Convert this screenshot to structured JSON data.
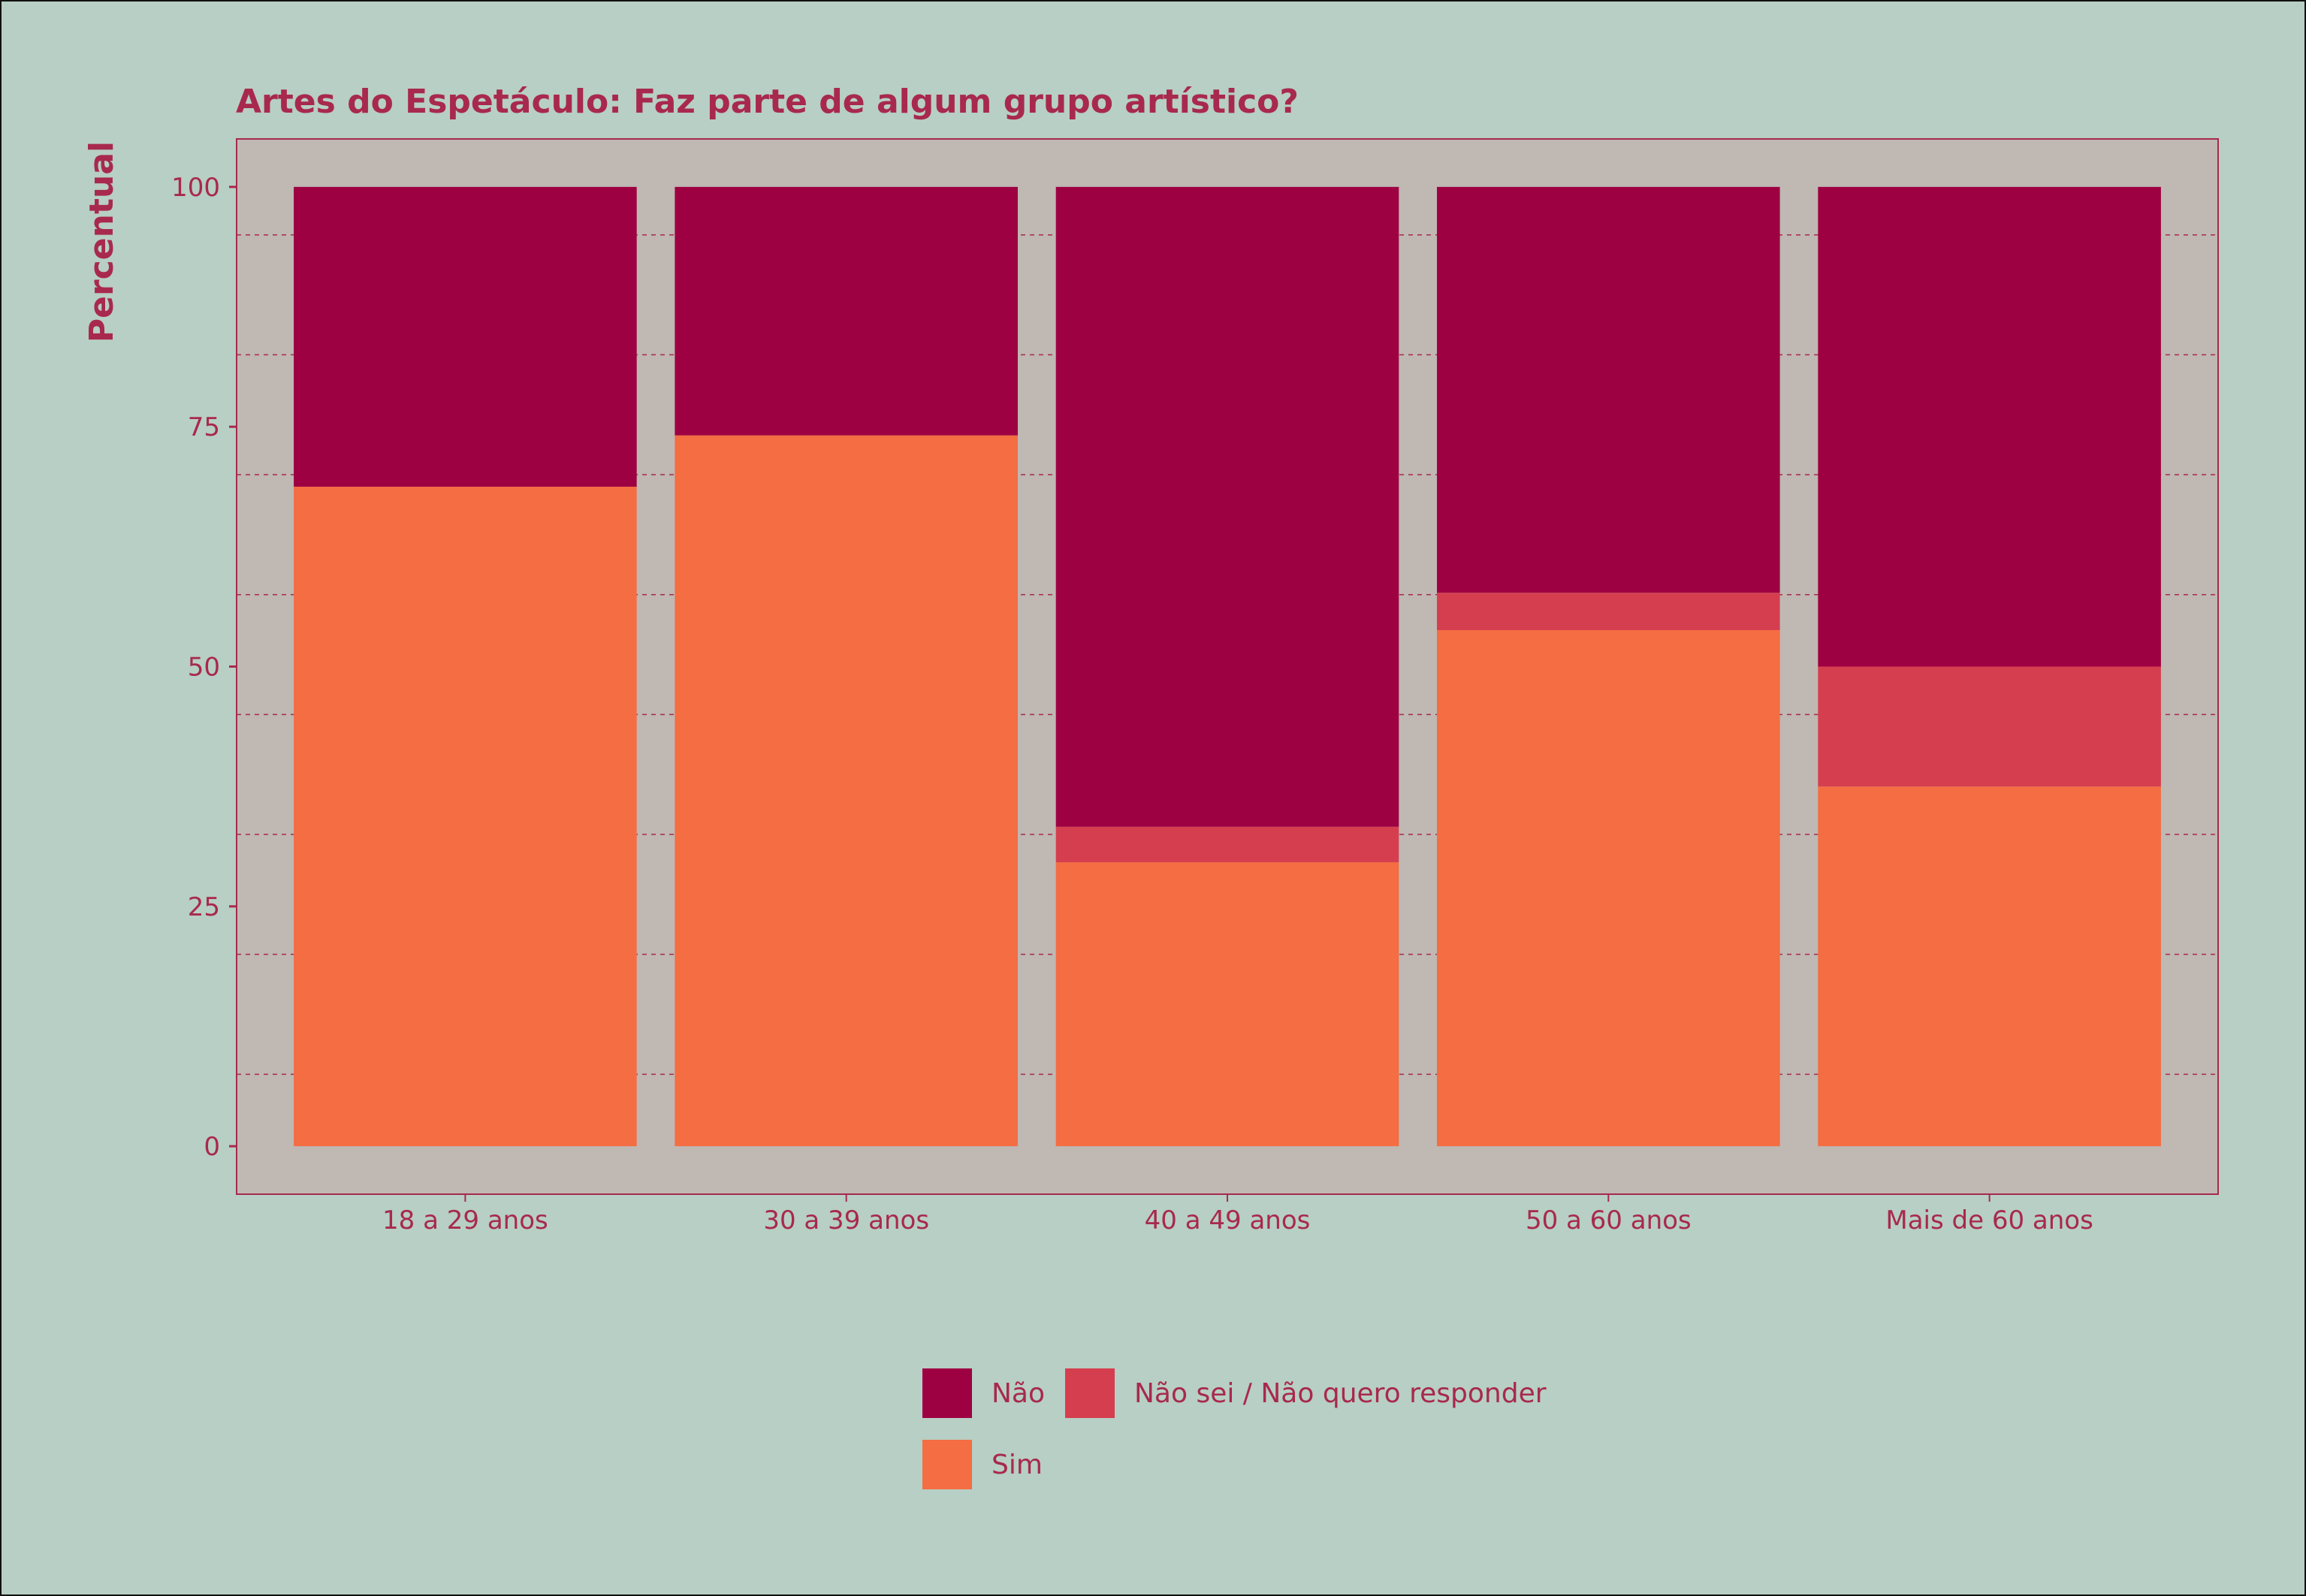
{
  "chart_data": {
    "type": "bar",
    "stacked": true,
    "title": "Artes do Espetáculo: Faz parte de algum grupo artístico?",
    "xlabel": "",
    "ylabel": "Percentual",
    "ylim": [
      -5,
      105
    ],
    "yticks": [
      0,
      25,
      50,
      75,
      100
    ],
    "categories": [
      "18 a 29 anos",
      "30 a 39 anos",
      "40 a 49 anos",
      "50 a 60 anos",
      "Mais de 60 anos"
    ],
    "series": [
      {
        "name": "Sim",
        "color": "#F46D43",
        "values": [
          68.75,
          74.1,
          29.6,
          53.8,
          37.5
        ]
      },
      {
        "name": "Não sei / Não quero responder",
        "color": "#D53E4F",
        "values": [
          0,
          0,
          3.7,
          3.9,
          12.5
        ]
      },
      {
        "name": "Não",
        "color": "#9E0142",
        "values": [
          31.25,
          25.9,
          66.7,
          42.3,
          50.0
        ]
      }
    ],
    "legend": {
      "position": "bottom",
      "order": [
        "Não",
        "Não sei / Não quero responder",
        "Sim"
      ]
    },
    "grid": true,
    "colors": {
      "background": "#B7CFC4",
      "panel": "#BFB8B3",
      "accent": "#A8294D"
    }
  }
}
